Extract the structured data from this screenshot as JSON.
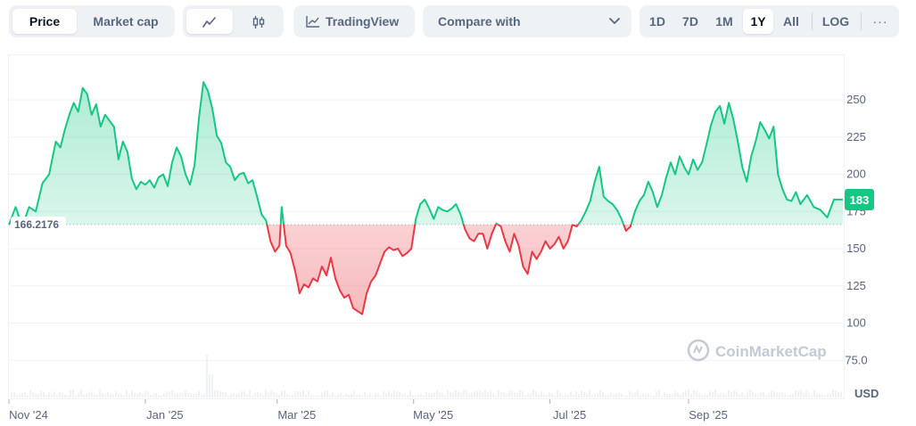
{
  "toolbar": {
    "tabs": [
      "Price",
      "Market cap"
    ],
    "tradingview_label": "TradingView",
    "compare_label": "Compare with",
    "ranges": [
      "1D",
      "7D",
      "1M",
      "1Y",
      "All"
    ],
    "log_label": "LOG",
    "more_label": "···"
  },
  "chart_data": {
    "type": "area",
    "baseline_label": "166.2176",
    "baseline": 166.2176,
    "current_label": "183",
    "currency_label": "USD",
    "watermark": "CoinMarketCap",
    "y_ticks": [
      {
        "value": 250,
        "label": "250"
      },
      {
        "value": 225,
        "label": "225"
      },
      {
        "value": 200,
        "label": "200"
      },
      {
        "value": 175,
        "label": "175"
      },
      {
        "value": 150,
        "label": "150"
      },
      {
        "value": 125,
        "label": "125"
      },
      {
        "value": 100,
        "label": "100"
      },
      {
        "value": 75,
        "label": "75.0"
      }
    ],
    "x_ticks": [
      {
        "date": "2024-11-01",
        "label": "Nov '24"
      },
      {
        "date": "2025-01-01",
        "label": "Jan '25"
      },
      {
        "date": "2025-03-01",
        "label": "Mar '25"
      },
      {
        "date": "2025-05-01",
        "label": "May '25"
      },
      {
        "date": "2025-07-01",
        "label": "Jul '25"
      },
      {
        "date": "2025-09-01",
        "label": "Sep '25"
      }
    ],
    "x_range": [
      "2024-11-01",
      "2025-11-09"
    ],
    "colors": {
      "up": "#16c784",
      "down": "#ea3943",
      "volume": "#eff2f5"
    },
    "price": [
      [
        "2024-11-01",
        166
      ],
      [
        "2024-11-04",
        178
      ],
      [
        "2024-11-07",
        165
      ],
      [
        "2024-11-10",
        178
      ],
      [
        "2024-11-13",
        175
      ],
      [
        "2024-11-16",
        194
      ],
      [
        "2024-11-19",
        200
      ],
      [
        "2024-11-22",
        222
      ],
      [
        "2024-11-24",
        218
      ],
      [
        "2024-11-26",
        230
      ],
      [
        "2024-11-28",
        240
      ],
      [
        "2024-11-30",
        248
      ],
      [
        "2024-12-02",
        242
      ],
      [
        "2024-12-04",
        258
      ],
      [
        "2024-12-06",
        254
      ],
      [
        "2024-12-08",
        240
      ],
      [
        "2024-12-10",
        247
      ],
      [
        "2024-12-12",
        232
      ],
      [
        "2024-12-14",
        240
      ],
      [
        "2024-12-16",
        236
      ],
      [
        "2024-12-18",
        232
      ],
      [
        "2024-12-20",
        210
      ],
      [
        "2024-12-22",
        222
      ],
      [
        "2024-12-24",
        215
      ],
      [
        "2024-12-26",
        197
      ],
      [
        "2024-12-28",
        190
      ],
      [
        "2024-12-30",
        195
      ],
      [
        "2025-01-01",
        193
      ],
      [
        "2025-01-03",
        196
      ],
      [
        "2025-01-05",
        191
      ],
      [
        "2025-01-07",
        198
      ],
      [
        "2025-01-09",
        200
      ],
      [
        "2025-01-11",
        192
      ],
      [
        "2025-01-13",
        208
      ],
      [
        "2025-01-15",
        218
      ],
      [
        "2025-01-17",
        212
      ],
      [
        "2025-01-19",
        200
      ],
      [
        "2025-01-21",
        193
      ],
      [
        "2025-01-23",
        206
      ],
      [
        "2025-01-25",
        238
      ],
      [
        "2025-01-27",
        262
      ],
      [
        "2025-01-29",
        256
      ],
      [
        "2025-01-31",
        244
      ],
      [
        "2025-02-02",
        226
      ],
      [
        "2025-02-04",
        221
      ],
      [
        "2025-02-06",
        208
      ],
      [
        "2025-02-08",
        205
      ],
      [
        "2025-02-10",
        196
      ],
      [
        "2025-02-12",
        200
      ],
      [
        "2025-02-14",
        201
      ],
      [
        "2025-02-16",
        194
      ],
      [
        "2025-02-18",
        196
      ],
      [
        "2025-02-20",
        185
      ],
      [
        "2025-02-22",
        173
      ],
      [
        "2025-02-24",
        169
      ],
      [
        "2025-02-26",
        155
      ],
      [
        "2025-02-28",
        148
      ],
      [
        "2025-03-02",
        152
      ],
      [
        "2025-03-03",
        178
      ],
      [
        "2025-03-05",
        152
      ],
      [
        "2025-03-07",
        147
      ],
      [
        "2025-03-09",
        135
      ],
      [
        "2025-03-11",
        120
      ],
      [
        "2025-03-13",
        126
      ],
      [
        "2025-03-15",
        124
      ],
      [
        "2025-03-17",
        130
      ],
      [
        "2025-03-19",
        128
      ],
      [
        "2025-03-21",
        138
      ],
      [
        "2025-03-23",
        132
      ],
      [
        "2025-03-25",
        144
      ],
      [
        "2025-03-27",
        130
      ],
      [
        "2025-03-29",
        122
      ],
      [
        "2025-03-31",
        117
      ],
      [
        "2025-04-02",
        119
      ],
      [
        "2025-04-04",
        110
      ],
      [
        "2025-04-06",
        108
      ],
      [
        "2025-04-08",
        106
      ],
      [
        "2025-04-10",
        120
      ],
      [
        "2025-04-12",
        128
      ],
      [
        "2025-04-14",
        132
      ],
      [
        "2025-04-16",
        140
      ],
      [
        "2025-04-18",
        148
      ],
      [
        "2025-04-20",
        151
      ],
      [
        "2025-04-22",
        149
      ],
      [
        "2025-04-24",
        150
      ],
      [
        "2025-04-26",
        145
      ],
      [
        "2025-04-28",
        147
      ],
      [
        "2025-04-30",
        150
      ],
      [
        "2025-05-02",
        170
      ],
      [
        "2025-05-04",
        180
      ],
      [
        "2025-05-06",
        183
      ],
      [
        "2025-05-08",
        177
      ],
      [
        "2025-05-10",
        170
      ],
      [
        "2025-05-12",
        178
      ],
      [
        "2025-05-14",
        176
      ],
      [
        "2025-05-16",
        175
      ],
      [
        "2025-05-18",
        177
      ],
      [
        "2025-05-20",
        180
      ],
      [
        "2025-05-22",
        173
      ],
      [
        "2025-05-24",
        163
      ],
      [
        "2025-05-26",
        157
      ],
      [
        "2025-05-28",
        155
      ],
      [
        "2025-05-30",
        160
      ],
      [
        "2025-06-01",
        160
      ],
      [
        "2025-06-03",
        150
      ],
      [
        "2025-06-05",
        160
      ],
      [
        "2025-06-07",
        167
      ],
      [
        "2025-06-09",
        165
      ],
      [
        "2025-06-11",
        155
      ],
      [
        "2025-06-13",
        148
      ],
      [
        "2025-06-15",
        160
      ],
      [
        "2025-06-17",
        152
      ],
      [
        "2025-06-19",
        138
      ],
      [
        "2025-06-21",
        133
      ],
      [
        "2025-06-23",
        148
      ],
      [
        "2025-06-25",
        143
      ],
      [
        "2025-06-27",
        148
      ],
      [
        "2025-06-29",
        155
      ],
      [
        "2025-07-01",
        150
      ],
      [
        "2025-07-03",
        153
      ],
      [
        "2025-07-05",
        158
      ],
      [
        "2025-07-07",
        150
      ],
      [
        "2025-07-09",
        155
      ],
      [
        "2025-07-11",
        166
      ],
      [
        "2025-07-13",
        165
      ],
      [
        "2025-07-15",
        169
      ],
      [
        "2025-07-17",
        175
      ],
      [
        "2025-07-19",
        182
      ],
      [
        "2025-07-21",
        195
      ],
      [
        "2025-07-23",
        205
      ],
      [
        "2025-07-25",
        185
      ],
      [
        "2025-07-27",
        182
      ],
      [
        "2025-07-29",
        180
      ],
      [
        "2025-07-31",
        176
      ],
      [
        "2025-08-02",
        170
      ],
      [
        "2025-08-04",
        162
      ],
      [
        "2025-08-06",
        165
      ],
      [
        "2025-08-08",
        175
      ],
      [
        "2025-08-10",
        182
      ],
      [
        "2025-08-12",
        186
      ],
      [
        "2025-08-14",
        195
      ],
      [
        "2025-08-16",
        188
      ],
      [
        "2025-08-18",
        178
      ],
      [
        "2025-08-20",
        186
      ],
      [
        "2025-08-22",
        198
      ],
      [
        "2025-08-24",
        208
      ],
      [
        "2025-08-26",
        200
      ],
      [
        "2025-08-28",
        212
      ],
      [
        "2025-08-30",
        205
      ],
      [
        "2025-09-01",
        200
      ],
      [
        "2025-09-03",
        210
      ],
      [
        "2025-09-05",
        203
      ],
      [
        "2025-09-07",
        208
      ],
      [
        "2025-09-09",
        220
      ],
      [
        "2025-09-11",
        233
      ],
      [
        "2025-09-13",
        242
      ],
      [
        "2025-09-15",
        246
      ],
      [
        "2025-09-17",
        234
      ],
      [
        "2025-09-19",
        248
      ],
      [
        "2025-09-21",
        237
      ],
      [
        "2025-09-23",
        222
      ],
      [
        "2025-09-25",
        205
      ],
      [
        "2025-09-27",
        195
      ],
      [
        "2025-09-29",
        212
      ],
      [
        "2025-10-01",
        222
      ],
      [
        "2025-10-03",
        235
      ],
      [
        "2025-10-05",
        230
      ],
      [
        "2025-10-07",
        224
      ],
      [
        "2025-10-09",
        232
      ],
      [
        "2025-10-11",
        200
      ],
      [
        "2025-10-13",
        190
      ],
      [
        "2025-10-15",
        183
      ],
      [
        "2025-10-17",
        182
      ],
      [
        "2025-10-19",
        188
      ],
      [
        "2025-10-21",
        180
      ],
      [
        "2025-10-24",
        186
      ],
      [
        "2025-10-27",
        178
      ],
      [
        "2025-10-30",
        176
      ],
      [
        "2025-11-02",
        171
      ],
      [
        "2025-11-05",
        183
      ],
      [
        "2025-11-09",
        183
      ]
    ]
  }
}
